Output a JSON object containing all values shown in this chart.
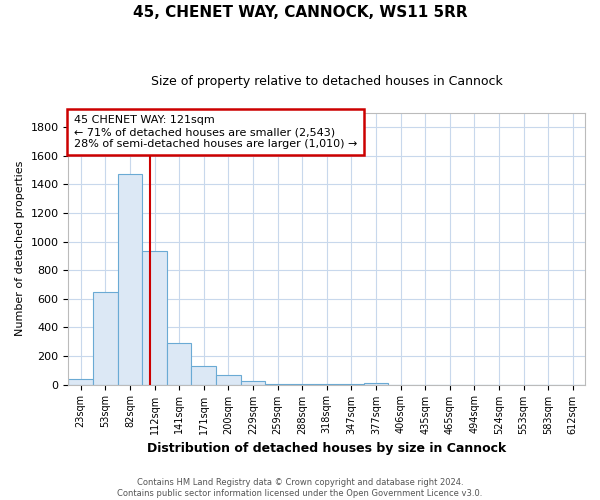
{
  "title1": "45, CHENET WAY, CANNOCK, WS11 5RR",
  "title2": "Size of property relative to detached houses in Cannock",
  "xlabel": "Distribution of detached houses by size in Cannock",
  "ylabel": "Number of detached properties",
  "bar_labels": [
    "23sqm",
    "53sqm",
    "82sqm",
    "112sqm",
    "141sqm",
    "171sqm",
    "200sqm",
    "229sqm",
    "259sqm",
    "288sqm",
    "318sqm",
    "347sqm",
    "377sqm",
    "406sqm",
    "435sqm",
    "465sqm",
    "494sqm",
    "524sqm",
    "553sqm",
    "583sqm",
    "612sqm"
  ],
  "bar_values": [
    40,
    650,
    1470,
    935,
    290,
    130,
    65,
    25,
    5,
    3,
    2,
    1,
    10,
    0,
    0,
    0,
    0,
    0,
    0,
    0,
    0
  ],
  "bar_color": "#dce8f5",
  "bar_edgecolor": "#6aaad4",
  "vline_color": "#cc0000",
  "annotation_text": "45 CHENET WAY: 121sqm\n← 71% of detached houses are smaller (2,543)\n28% of semi-detached houses are larger (1,010) →",
  "annotation_box_color": "#ffffff",
  "annotation_box_edgecolor": "#cc0000",
  "ylim": [
    0,
    1900
  ],
  "yticks": [
    0,
    200,
    400,
    600,
    800,
    1000,
    1200,
    1400,
    1600,
    1800
  ],
  "footnote": "Contains HM Land Registry data © Crown copyright and database right 2024.\nContains public sector information licensed under the Open Government Licence v3.0.",
  "grid_color": "#c8d8ec",
  "background_color": "#ffffff",
  "title1_fontsize": 11,
  "title2_fontsize": 9
}
